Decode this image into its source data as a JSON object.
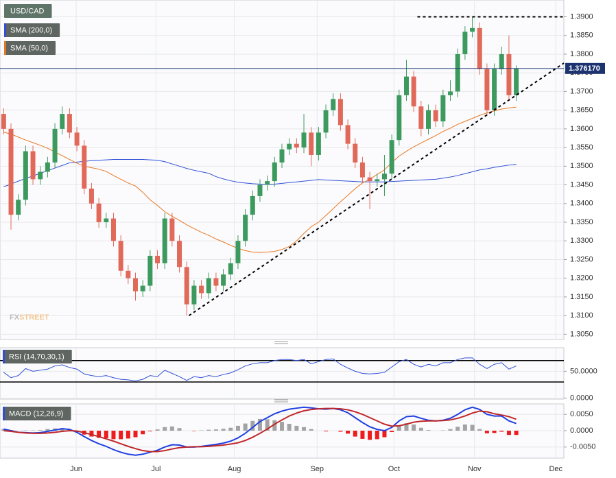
{
  "chart_data": [
    {
      "type": "candlestick",
      "title": "USD/CAD",
      "up_color": "#3d9a5e",
      "down_color": "#e0695a",
      "open": [
        1.364,
        1.36,
        1.337,
        1.341,
        1.354,
        1.3465,
        1.3485,
        1.351,
        1.36,
        1.364,
        1.359,
        1.3555,
        1.344,
        1.34,
        1.335,
        1.336,
        1.33,
        1.322,
        1.32,
        1.3165,
        1.318,
        1.326,
        1.324,
        1.336,
        1.33,
        1.323,
        1.313,
        1.318,
        1.316,
        1.32,
        1.318,
        1.321,
        1.324,
        1.33,
        1.337,
        1.342,
        1.345,
        1.346,
        1.351,
        1.3545,
        1.356,
        1.355,
        1.359,
        1.353,
        1.359,
        1.365,
        1.368,
        1.361,
        1.356,
        1.351,
        1.347,
        1.346,
        1.3465,
        1.348,
        1.357,
        1.369,
        1.374,
        1.366,
        1.36,
        1.365,
        1.362,
        1.369,
        1.37,
        1.38,
        1.386,
        1.387,
        1.376,
        1.365,
        1.376,
        1.38,
        1.369
      ],
      "high": [
        1.3655,
        1.3615,
        1.3425,
        1.3555,
        1.3555,
        1.35,
        1.3525,
        1.3615,
        1.366,
        1.3655,
        1.3605,
        1.357,
        1.3455,
        1.3415,
        1.3375,
        1.3375,
        1.3315,
        1.3235,
        1.3215,
        1.3195,
        1.3275,
        1.3275,
        1.3375,
        1.3375,
        1.3315,
        1.3245,
        1.3195,
        1.3195,
        1.3215,
        1.3215,
        1.3225,
        1.3255,
        1.3315,
        1.3385,
        1.3435,
        1.3465,
        1.3475,
        1.3525,
        1.356,
        1.3575,
        1.3575,
        1.364,
        1.3605,
        1.3605,
        1.3665,
        1.3695,
        1.3695,
        1.3625,
        1.3575,
        1.3525,
        1.3485,
        1.348,
        1.353,
        1.3585,
        1.3705,
        1.3785,
        1.3755,
        1.3675,
        1.3665,
        1.3665,
        1.3705,
        1.373,
        1.3815,
        1.3875,
        1.39,
        1.3885,
        1.3775,
        1.3775,
        1.382,
        1.385,
        1.377
      ],
      "low": [
        1.3585,
        1.333,
        1.3355,
        1.3395,
        1.345,
        1.345,
        1.347,
        1.3495,
        1.3585,
        1.3575,
        1.354,
        1.3425,
        1.3385,
        1.3335,
        1.3335,
        1.3285,
        1.3205,
        1.3185,
        1.314,
        1.315,
        1.3165,
        1.3225,
        1.3225,
        1.3285,
        1.3215,
        1.31,
        1.3115,
        1.3145,
        1.3145,
        1.3165,
        1.3165,
        1.3195,
        1.3225,
        1.3285,
        1.3355,
        1.3405,
        1.3435,
        1.3445,
        1.3495,
        1.353,
        1.3535,
        1.3535,
        1.35,
        1.3515,
        1.3575,
        1.3635,
        1.3595,
        1.3545,
        1.3495,
        1.3455,
        1.3385,
        1.3445,
        1.342,
        1.3465,
        1.3555,
        1.3675,
        1.3645,
        1.358,
        1.3585,
        1.3605,
        1.3605,
        1.3675,
        1.3685,
        1.3785,
        1.3845,
        1.3745,
        1.3635,
        1.3635,
        1.3745,
        1.3675,
        1.3675
      ],
      "close": [
        1.36,
        1.337,
        1.341,
        1.354,
        1.3465,
        1.3485,
        1.351,
        1.36,
        1.364,
        1.359,
        1.3555,
        1.344,
        1.34,
        1.335,
        1.336,
        1.33,
        1.322,
        1.32,
        1.3165,
        1.318,
        1.326,
        1.324,
        1.336,
        1.33,
        1.323,
        1.313,
        1.318,
        1.316,
        1.32,
        1.318,
        1.321,
        1.324,
        1.33,
        1.337,
        1.342,
        1.345,
        1.346,
        1.351,
        1.3545,
        1.356,
        1.355,
        1.359,
        1.353,
        1.359,
        1.365,
        1.368,
        1.361,
        1.356,
        1.351,
        1.347,
        1.346,
        1.3465,
        1.348,
        1.357,
        1.369,
        1.374,
        1.366,
        1.36,
        1.365,
        1.362,
        1.369,
        1.37,
        1.38,
        1.386,
        1.387,
        1.376,
        1.365,
        1.376,
        1.38,
        1.369,
        1.3762
      ],
      "series": [
        {
          "name": "SMA (200,0)",
          "color": "#2f4fd6",
          "values": [
            1.3445,
            1.3452,
            1.346,
            1.3467,
            1.3474,
            1.3481,
            1.3488,
            1.3495,
            1.3502,
            1.3509,
            1.3511,
            1.3513,
            1.3515,
            1.3516,
            1.3517,
            1.3518,
            1.3518,
            1.3518,
            1.3518,
            1.3518,
            1.3517,
            1.3516,
            1.3512,
            1.3506,
            1.35,
            1.3494,
            1.3489,
            1.3485,
            1.3481,
            1.3472,
            1.3466,
            1.3461,
            1.3457,
            1.3455,
            1.3453,
            1.3452,
            1.3451,
            1.3452,
            1.3454,
            1.3456,
            1.3458,
            1.346,
            1.3462,
            1.3464,
            1.3463,
            1.3462,
            1.3461,
            1.346,
            1.3459,
            1.3458,
            1.3458,
            1.3458,
            1.3458,
            1.3459,
            1.346,
            1.3461,
            1.3462,
            1.3463,
            1.3464,
            1.3465,
            1.3468,
            1.3471,
            1.3475,
            1.348,
            1.3485,
            1.349,
            1.3493,
            1.3497,
            1.35,
            1.3503,
            1.3505
          ]
        },
        {
          "name": "SMA (50,0)",
          "color": "#e87722",
          "values": [
            1.3591,
            1.3586,
            1.3578,
            1.357,
            1.3563,
            1.3556,
            1.3548,
            1.3538,
            1.3528,
            1.3518,
            1.3508,
            1.35,
            1.3496,
            1.3492,
            1.3486,
            1.3475,
            1.3465,
            1.3455,
            1.3447,
            1.343,
            1.341,
            1.3395,
            1.3378,
            1.3366,
            1.3355,
            1.3343,
            1.3333,
            1.3323,
            1.3315,
            1.3305,
            1.3297,
            1.3288,
            1.328,
            1.3274,
            1.327,
            1.3269,
            1.327,
            1.3272,
            1.3277,
            1.3285,
            1.33,
            1.332,
            1.3338,
            1.335,
            1.3368,
            1.3386,
            1.3405,
            1.3422,
            1.344,
            1.3455,
            1.3465,
            1.3478,
            1.349,
            1.351,
            1.3527,
            1.354,
            1.3552,
            1.3562,
            1.3572,
            1.3582,
            1.3593,
            1.3602,
            1.3612,
            1.362,
            1.3628,
            1.3636,
            1.3643,
            1.3648,
            1.3653,
            1.3656,
            1.3658
          ]
        }
      ],
      "ylim": [
        1.3036,
        1.3945
      ],
      "yticks": [
        {
          "value": 1.305,
          "label": "1.3050"
        },
        {
          "value": 1.31,
          "label": "1.3100"
        },
        {
          "value": 1.315,
          "label": "1.3150"
        },
        {
          "value": 1.32,
          "label": "1.3200"
        },
        {
          "value": 1.325,
          "label": "1.3250"
        },
        {
          "value": 1.33,
          "label": "1.3300"
        },
        {
          "value": 1.335,
          "label": "1.3350"
        },
        {
          "value": 1.34,
          "label": "1.3400"
        },
        {
          "value": 1.345,
          "label": "1.3450"
        },
        {
          "value": 1.35,
          "label": "1.3500"
        },
        {
          "value": 1.355,
          "label": "1.3550"
        },
        {
          "value": 1.36,
          "label": "1.3600"
        },
        {
          "value": 1.365,
          "label": "1.3650"
        },
        {
          "value": 1.37,
          "label": "1.3700"
        },
        {
          "value": 1.375,
          "label": "1.3750"
        },
        {
          "value": 1.38,
          "label": "1.3800"
        },
        {
          "value": 1.385,
          "label": "1.3850"
        },
        {
          "value": 1.39,
          "label": "1.3900"
        }
      ],
      "grid": true,
      "last_price": {
        "value": 1.37617,
        "label": "1.376170"
      },
      "trendlines": [
        {
          "x": [
            57,
            77
          ],
          "y": [
            1.39,
            1.39
          ]
        },
        {
          "x": [
            25.8,
            77
          ],
          "y": [
            1.31,
            1.3776
          ]
        }
      ],
      "watermark": {
        "prefix": "FX",
        "suffix": "STREET"
      }
    },
    {
      "type": "line",
      "title": "RSI (14,70,30,1)",
      "levels": [
        70,
        30
      ],
      "series": [
        {
          "color": "#2f4fd6",
          "values": [
            48,
            38,
            42,
            55,
            50,
            52,
            54,
            60,
            62,
            57,
            54,
            45,
            42,
            40,
            42,
            38,
            35,
            34,
            32,
            35,
            42,
            40,
            52,
            46,
            40,
            33,
            40,
            38,
            42,
            40,
            44,
            47,
            53,
            60,
            64,
            66,
            66,
            70,
            72,
            72,
            70,
            72,
            64,
            68,
            72,
            73,
            63,
            56,
            50,
            46,
            45,
            46,
            48,
            58,
            68,
            72,
            63,
            58,
            63,
            60,
            66,
            66,
            72,
            75,
            75,
            63,
            55,
            63,
            66,
            54,
            60
          ]
        }
      ],
      "ylim": [
        -2,
        94
      ],
      "yticks": [
        {
          "value": 50,
          "label": "50.0000"
        },
        {
          "value": 0,
          "label": "0.0000"
        }
      ]
    },
    {
      "type": "macd",
      "title": "MACD (12,26,9)",
      "series": [
        {
          "color": "#1f3fe0",
          "values": [
            0.0005,
            0.0,
            -0.0005,
            -0.0006,
            -0.0007,
            -0.0006,
            -0.0002,
            0.0002,
            0.0006,
            0.0004,
            -0.0005,
            -0.0018,
            -0.003,
            -0.004,
            -0.0048,
            -0.0058,
            -0.0066,
            -0.0072,
            -0.0075,
            -0.0072,
            -0.0066,
            -0.006,
            -0.005,
            -0.0043,
            -0.0044,
            -0.005,
            -0.005,
            -0.0048,
            -0.0045,
            -0.0042,
            -0.0038,
            -0.0032,
            -0.0022,
            -0.0008,
            0.001,
            0.0028,
            0.004,
            0.0052,
            0.006,
            0.0066,
            0.0069,
            0.0072,
            0.007,
            0.0067,
            0.0066,
            0.0068,
            0.0064,
            0.0055,
            0.004,
            0.0025,
            0.0012,
            0.0004,
            0.0,
            0.001,
            0.003,
            0.0043,
            0.0045,
            0.0038,
            0.0032,
            0.003,
            0.0032,
            0.0038,
            0.005,
            0.0064,
            0.0072,
            0.0065,
            0.005,
            0.0045,
            0.0045,
            0.003,
            0.0022
          ]
        },
        {
          "color": "#c0282a",
          "values": [
            0.0,
            -0.0002,
            -0.0005,
            -0.0007,
            -0.0008,
            -0.0008,
            -0.0007,
            -0.0005,
            -0.0002,
            0.0,
            -0.0001,
            -0.0006,
            -0.0012,
            -0.0018,
            -0.0025,
            -0.0032,
            -0.004,
            -0.0048,
            -0.0055,
            -0.0061,
            -0.0064,
            -0.0064,
            -0.0061,
            -0.0056,
            -0.0052,
            -0.005,
            -0.0049,
            -0.0049,
            -0.0048,
            -0.0046,
            -0.0044,
            -0.0041,
            -0.0037,
            -0.003,
            -0.002,
            -0.0008,
            0.0005,
            0.002,
            0.0033,
            0.0045,
            0.0054,
            0.0061,
            0.0065,
            0.0067,
            0.0068,
            0.0068,
            0.0067,
            0.0064,
            0.0058,
            0.005,
            0.004,
            0.003,
            0.002,
            0.0014,
            0.0015,
            0.002,
            0.0026,
            0.0029,
            0.003,
            0.003,
            0.0031,
            0.0033,
            0.0038,
            0.0045,
            0.0054,
            0.006,
            0.0058,
            0.0052,
            0.0048,
            0.0043,
            0.0035
          ]
        }
      ],
      "histogram": {
        "up_color": "#a3a3a3",
        "down_color": "#ee1c1c",
        "values": [
          0.0005,
          0.0002,
          0.0,
          0.0001,
          0.0001,
          0.0002,
          0.0005,
          0.0007,
          0.0008,
          0.0004,
          -0.0004,
          -0.0012,
          -0.0018,
          -0.0022,
          -0.0023,
          -0.0026,
          -0.0026,
          -0.0024,
          -0.002,
          -0.0011,
          -0.0002,
          0.0004,
          0.0011,
          0.0013,
          0.0008,
          0.0,
          -0.0001,
          0.0001,
          0.0003,
          0.0004,
          0.0006,
          0.0009,
          0.0015,
          0.0022,
          0.003,
          0.0036,
          0.0035,
          0.0032,
          0.0027,
          0.0021,
          0.0015,
          0.0011,
          0.0005,
          0.0,
          -0.0002,
          0.0,
          -0.0003,
          -0.0009,
          -0.0018,
          -0.0025,
          -0.0028,
          -0.0026,
          -0.002,
          -0.0004,
          0.0015,
          0.0023,
          0.0019,
          0.0009,
          0.0002,
          0.0,
          0.0001,
          0.0005,
          0.0012,
          0.0019,
          0.0018,
          0.0005,
          -0.0008,
          -0.0007,
          -0.0003,
          -0.0013,
          -0.0013
        ]
      },
      "ylim": [
        -0.0084,
        0.0082
      ],
      "yticks": [
        {
          "value": 0.005,
          "label": "0.0050"
        },
        {
          "value": 0,
          "label": "0.0000"
        },
        {
          "value": -0.005,
          "label": "-0.0050"
        }
      ],
      "xlim": [
        0,
        77
      ],
      "xticks": [
        {
          "value": 10.4,
          "label": "Jun"
        },
        {
          "value": 21.3,
          "label": "Jul"
        },
        {
          "value": 32.0,
          "label": "Aug"
        },
        {
          "value": 43.3,
          "label": "Sep"
        },
        {
          "value": 53.8,
          "label": "Oct"
        },
        {
          "value": 64.8,
          "label": "Nov"
        },
        {
          "value": 75.9,
          "label": "Dec"
        }
      ]
    }
  ]
}
